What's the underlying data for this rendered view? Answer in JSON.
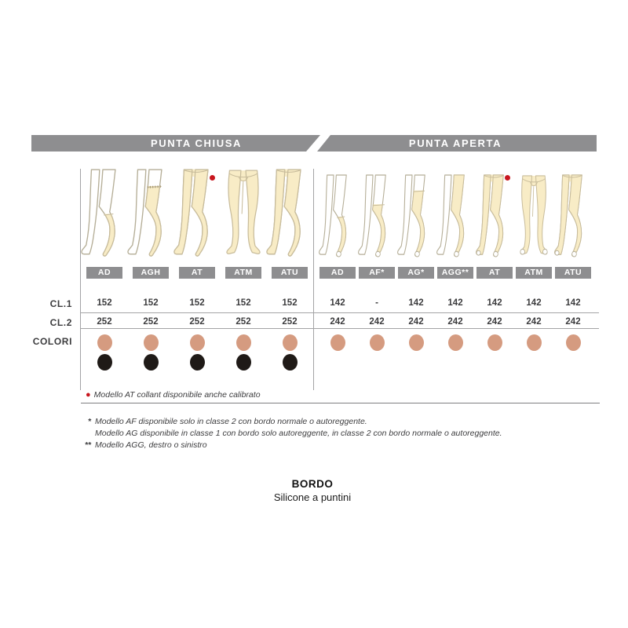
{
  "header": {
    "tabs": [
      {
        "label": "PUNTA CHIUSA"
      },
      {
        "label": "PUNTA APERTA"
      }
    ]
  },
  "row_labels": {
    "cl1": "CL.1",
    "cl2": "CL.2",
    "colori": "COLORI"
  },
  "sections": [
    {
      "title": "PUNTA CHIUSA",
      "columns": [
        {
          "model": "AD",
          "cl1": "152",
          "cl2": "252",
          "dots": [
            "skin",
            "black"
          ],
          "figure": "knee",
          "toe": "closed",
          "red_dot": false
        },
        {
          "model": "AGH",
          "cl1": "152",
          "cl2": "252",
          "dots": [
            "skin",
            "black"
          ],
          "figure": "thigh-band",
          "toe": "closed",
          "red_dot": false
        },
        {
          "model": "AT",
          "cl1": "152",
          "cl2": "252",
          "dots": [
            "skin",
            "black"
          ],
          "figure": "tights",
          "toe": "closed",
          "red_dot": true
        },
        {
          "model": "ATM",
          "cl1": "152",
          "cl2": "252",
          "dots": [
            "skin",
            "black"
          ],
          "figure": "tights-front",
          "toe": "closed",
          "red_dot": false
        },
        {
          "model": "ATU",
          "cl1": "152",
          "cl2": "252",
          "dots": [
            "skin",
            "black"
          ],
          "figure": "tights",
          "toe": "closed",
          "red_dot": false
        }
      ]
    },
    {
      "title": "PUNTA APERTA",
      "columns": [
        {
          "model": "AD",
          "cl1": "142",
          "cl2": "242",
          "dots": [
            "skin"
          ],
          "figure": "knee",
          "toe": "open",
          "red_dot": false
        },
        {
          "model": "AF*",
          "cl1": "-",
          "cl2": "242",
          "dots": [
            "skin"
          ],
          "figure": "over-knee",
          "toe": "open",
          "red_dot": false
        },
        {
          "model": "AG*",
          "cl1": "142",
          "cl2": "242",
          "dots": [
            "skin"
          ],
          "figure": "thigh",
          "toe": "open",
          "red_dot": false
        },
        {
          "model": "AGG**",
          "cl1": "142",
          "cl2": "242",
          "dots": [
            "skin"
          ],
          "figure": "single-leg-tights",
          "toe": "open",
          "red_dot": false
        },
        {
          "model": "AT",
          "cl1": "142",
          "cl2": "242",
          "dots": [
            "skin"
          ],
          "figure": "tights",
          "toe": "open",
          "red_dot": true
        },
        {
          "model": "ATM",
          "cl1": "142",
          "cl2": "242",
          "dots": [
            "skin"
          ],
          "figure": "tights-front",
          "toe": "open",
          "red_dot": false
        },
        {
          "model": "ATU",
          "cl1": "142",
          "cl2": "242",
          "dots": [
            "skin"
          ],
          "figure": "tights",
          "toe": "open",
          "red_dot": false
        }
      ]
    }
  ],
  "notes": {
    "red_note": "Modello AT collant disponibile anche calibrato",
    "footnotes": [
      {
        "marker": "*",
        "text": "Modello AF disponibile solo in classe 2 con bordo normale o autoreggente."
      },
      {
        "marker": "",
        "text": "Modello AG disponibile in classe 1 con bordo solo autoreggente, in classe 2 con bordo normale o autoreggente."
      },
      {
        "marker": "**",
        "text": "Modello AGG, destro o sinistro"
      }
    ]
  },
  "footer": {
    "title": "BORDO",
    "subtitle": "Silicone a puntini"
  },
  "colors": {
    "bar": "#8e8e90",
    "skin_dot": "#d59b80",
    "black_dot": "#1f1a17",
    "red_dot": "#c8161e",
    "leg_fill": "#f8ecc6",
    "leg_outline": "#b5ae97",
    "text": "#3c3c3e",
    "rule": "#a3a3a5"
  }
}
